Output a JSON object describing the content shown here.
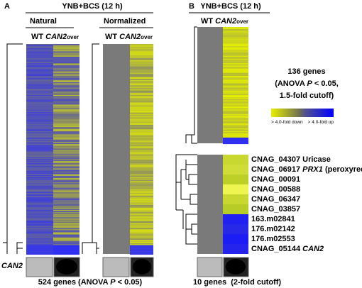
{
  "panel_a": {
    "label": "A",
    "condition": "YNB+BCS (12 h)",
    "natural": {
      "title": "Natural",
      "wt": "WT",
      "strain": "CAN2",
      "strain_suffix": "over"
    },
    "normalized": {
      "title": "Normalized",
      "wt": "WT",
      "strain": "CAN2",
      "strain_suffix": "over"
    },
    "blot_label": "CAN2",
    "summary": {
      "start": "524 genes (ANOVA ",
      "stat": "P",
      "end": " < 0.05)"
    }
  },
  "panel_b": {
    "label": "B",
    "condition": "YNB+BCS (12 h)",
    "header": {
      "wt": "WT",
      "strain": "CAN2",
      "strain_suffix": "over"
    },
    "cluster_note": {
      "line1": "136 genes",
      "line2_start": "(ANOVA ",
      "line2_stat": "P",
      "line2_end": " < 0.05,",
      "line3": "1.5-fold cutoff)"
    },
    "legend": {
      "down": "> 4.0-fold down",
      "up": "> 4.0-fold up"
    },
    "genes": [
      {
        "id": "CNAG_04307",
        "desc": "Uricase"
      },
      {
        "id": "CNAG_06917",
        "gene": "PRX1",
        "desc": "(peroxyredoxin)"
      },
      {
        "id": "CNAG_00091"
      },
      {
        "id": "CNAG_00588"
      },
      {
        "id": "CNAG_06347"
      },
      {
        "id": "CNAG_03857"
      },
      {
        "id": "163.m02841"
      },
      {
        "id": "176.m02142"
      },
      {
        "id": "176.m02553"
      },
      {
        "id": "CNAG_05144",
        "gene": "CAN2"
      }
    ],
    "summary": "10 genes  (2-fold cutoff)"
  }
}
